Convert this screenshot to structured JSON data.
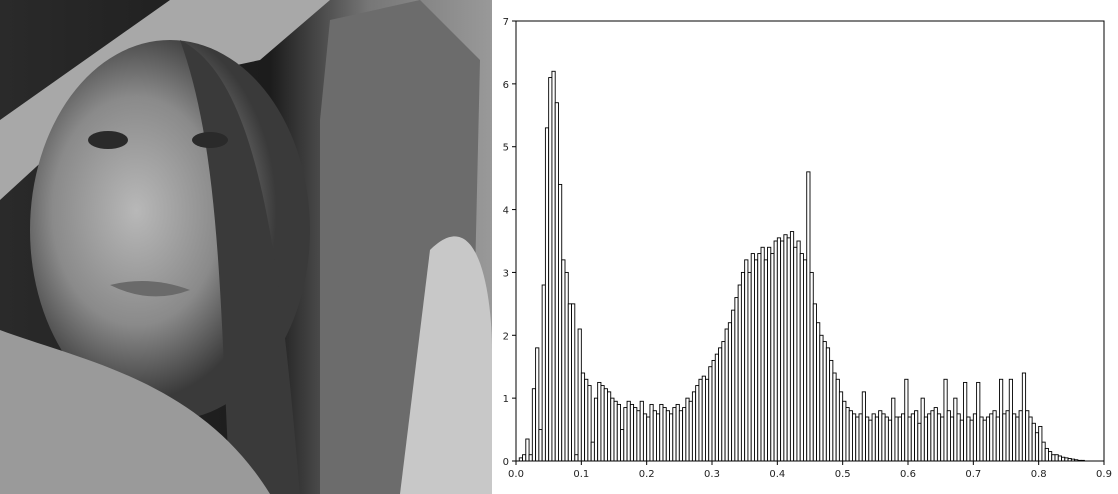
{
  "chart_data": {
    "type": "histogram",
    "bins": [
      0,
      0.005,
      0.01,
      0.015,
      0.02,
      0.025,
      0.03,
      0.035,
      0.04,
      0.045,
      0.05,
      0.055,
      0.06,
      0.065,
      0.07,
      0.075,
      0.08,
      0.085,
      0.09,
      0.095,
      0.1,
      0.105,
      0.11,
      0.115,
      0.12,
      0.125,
      0.13,
      0.135,
      0.14,
      0.145,
      0.15,
      0.155,
      0.16,
      0.165,
      0.17,
      0.175,
      0.18,
      0.185,
      0.19,
      0.195,
      0.2,
      0.205,
      0.21,
      0.215,
      0.22,
      0.225,
      0.23,
      0.235,
      0.24,
      0.245,
      0.25,
      0.255,
      0.26,
      0.265,
      0.27,
      0.275,
      0.28,
      0.285,
      0.29,
      0.295,
      0.3,
      0.305,
      0.31,
      0.315,
      0.32,
      0.325,
      0.33,
      0.335,
      0.34,
      0.345,
      0.35,
      0.355,
      0.36,
      0.365,
      0.37,
      0.375,
      0.38,
      0.385,
      0.39,
      0.395,
      0.4,
      0.405,
      0.41,
      0.415,
      0.42,
      0.425,
      0.43,
      0.435,
      0.44,
      0.445,
      0.45,
      0.455,
      0.46,
      0.465,
      0.47,
      0.475,
      0.48,
      0.485,
      0.49,
      0.495,
      0.5,
      0.505,
      0.51,
      0.515,
      0.52,
      0.525,
      0.53,
      0.535,
      0.54,
      0.545,
      0.55,
      0.555,
      0.56,
      0.565,
      0.57,
      0.575,
      0.58,
      0.585,
      0.59,
      0.595,
      0.6,
      0.605,
      0.61,
      0.615,
      0.62,
      0.625,
      0.63,
      0.635,
      0.64,
      0.645,
      0.65,
      0.655,
      0.66,
      0.665,
      0.67,
      0.675,
      0.68,
      0.685,
      0.69,
      0.695,
      0.7,
      0.705,
      0.71,
      0.715,
      0.72,
      0.725,
      0.73,
      0.735,
      0.74,
      0.745,
      0.75,
      0.755,
      0.76,
      0.765,
      0.77,
      0.775,
      0.78,
      0.785,
      0.79,
      0.795,
      0.8,
      0.805,
      0.81,
      0.815,
      0.82,
      0.825,
      0.83,
      0.835,
      0.84,
      0.845,
      0.85,
      0.855,
      0.86,
      0.865,
      0.87,
      0.875
    ],
    "values": [
      0,
      0.05,
      0.1,
      0.35,
      0.1,
      1.15,
      1.8,
      0.5,
      2.8,
      5.3,
      6.1,
      6.2,
      5.7,
      4.4,
      3.2,
      3.0,
      2.5,
      2.5,
      0.1,
      2.1,
      1.4,
      1.3,
      1.2,
      0.3,
      1.0,
      1.25,
      1.2,
      1.15,
      1.1,
      1.0,
      0.95,
      0.9,
      0.5,
      0.85,
      0.95,
      0.9,
      0.85,
      0.8,
      0.95,
      0.75,
      0.7,
      0.9,
      0.8,
      0.75,
      0.9,
      0.85,
      0.8,
      0.75,
      0.85,
      0.9,
      0.8,
      0.85,
      1.0,
      0.95,
      1.1,
      1.2,
      1.3,
      1.35,
      1.3,
      1.5,
      1.6,
      1.7,
      1.8,
      1.9,
      2.1,
      2.2,
      2.4,
      2.6,
      2.8,
      3.0,
      3.2,
      3.0,
      3.3,
      3.2,
      3.3,
      3.4,
      3.2,
      3.4,
      3.3,
      3.5,
      3.55,
      3.5,
      3.6,
      3.55,
      3.65,
      3.4,
      3.5,
      3.3,
      3.2,
      4.6,
      3.0,
      2.5,
      2.2,
      2.0,
      1.9,
      1.8,
      1.6,
      1.4,
      1.3,
      1.1,
      0.95,
      0.85,
      0.8,
      0.75,
      0.7,
      0.75,
      1.1,
      0.7,
      0.65,
      0.75,
      0.7,
      0.8,
      0.75,
      0.7,
      0.65,
      1.0,
      0.7,
      0.7,
      0.75,
      1.3,
      0.7,
      0.75,
      0.8,
      0.6,
      1.0,
      0.7,
      0.75,
      0.8,
      0.85,
      0.75,
      0.7,
      1.3,
      0.8,
      0.7,
      1.0,
      0.75,
      0.65,
      1.25,
      0.7,
      0.65,
      0.75,
      1.25,
      0.7,
      0.65,
      0.7,
      0.75,
      0.8,
      0.7,
      1.3,
      0.75,
      0.8,
      1.3,
      0.75,
      0.7,
      0.8,
      1.4,
      0.8,
      0.7,
      0.6,
      0.45,
      0.55,
      0.3,
      0.2,
      0.15,
      0.1,
      0.1,
      0.08,
      0.06,
      0.05,
      0.04,
      0.03,
      0.02,
      0.01,
      0.01,
      0.0
    ],
    "color": "#ffffff",
    "edge_color": "#000000",
    "xlim": [
      0,
      0.9
    ],
    "xticks": [
      {
        "value": 0,
        "label": "0.0"
      },
      0.1,
      0.2,
      0.3,
      0.4,
      0.5,
      0.6,
      0.7,
      0.8,
      0.9
    ],
    "ylim": [
      0,
      7
    ],
    "yticks": [
      0,
      1,
      2,
      3,
      4,
      5,
      6,
      7
    ]
  }
}
